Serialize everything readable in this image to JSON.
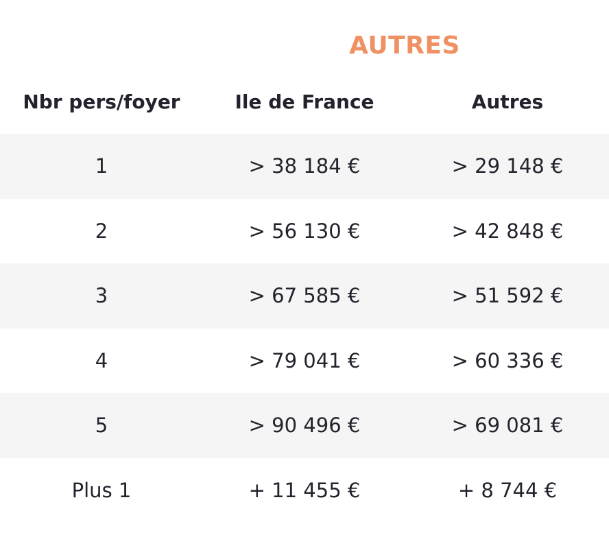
{
  "group_title": "AUTRES",
  "headers": {
    "persons": "Nbr pers/foyer",
    "idf": "Ile de France",
    "autres": "Autres"
  },
  "rows": [
    {
      "persons": "1",
      "idf": "> 38 184 €",
      "autres": "> 29 148 €"
    },
    {
      "persons": "2",
      "idf": "> 56 130 €",
      "autres": "> 42 848 €"
    },
    {
      "persons": "3",
      "idf": "> 67 585 €",
      "autres": "> 51 592 €"
    },
    {
      "persons": "4",
      "idf": "> 79 041 €",
      "autres": "> 60 336 €"
    },
    {
      "persons": "5",
      "idf": "> 90 496 €",
      "autres": "> 69 081 €"
    },
    {
      "persons": "Plus 1",
      "idf": "+ 11 455 €",
      "autres": "+ 8 744 €"
    }
  ],
  "colors": {
    "accent": "#ef9163",
    "text": "#23232e",
    "row_shade": "#f5f5f5"
  }
}
